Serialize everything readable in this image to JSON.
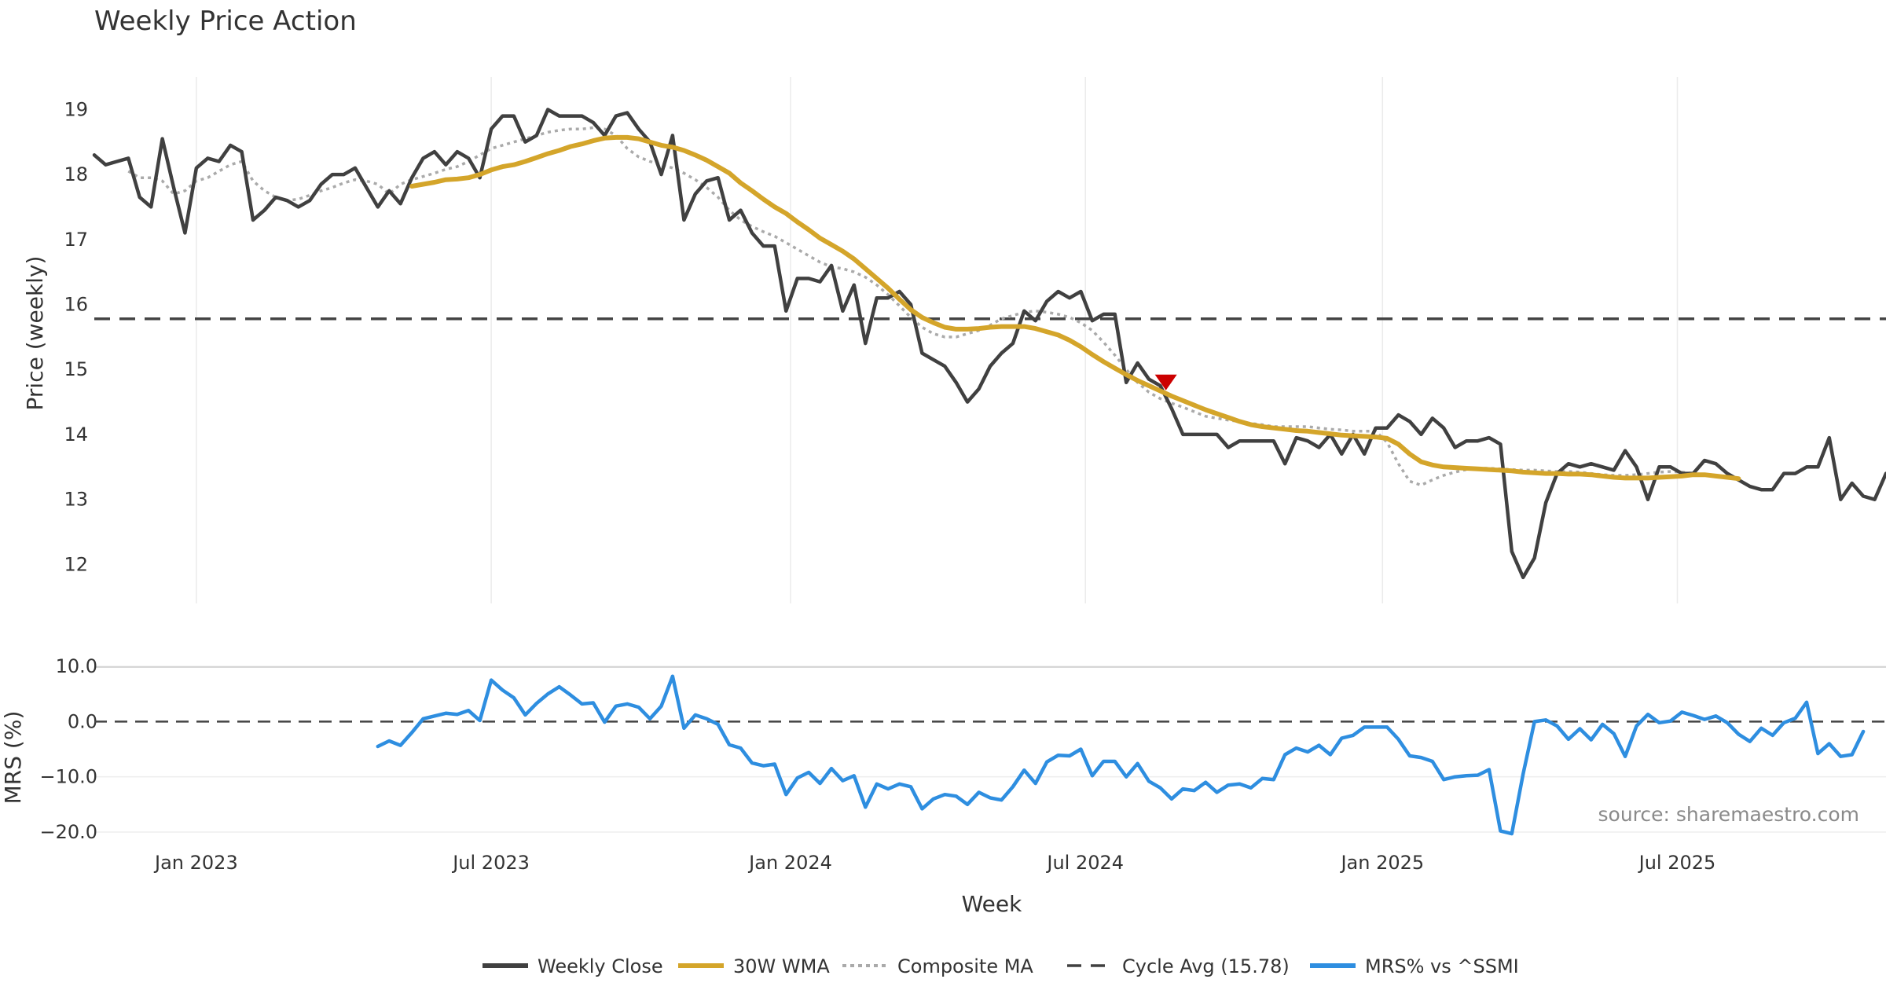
{
  "chart_data": {
    "type": "line",
    "title": "Weekly Price Action",
    "xlabel": "Week",
    "x_ticks": [
      {
        "label": "Jan 2023",
        "week": 12
      },
      {
        "label": "Jul 2023",
        "week": 38
      },
      {
        "label": "Jan 2024",
        "week": 64.4
      },
      {
        "label": "Jul 2024",
        "week": 90.4
      },
      {
        "label": "Jan 2025",
        "week": 116.6
      },
      {
        "label": "Jul 2025",
        "week": 142.6
      }
    ],
    "x_range": [
      3,
      161
    ],
    "source": "source: sharemaestro.com",
    "price_panel": {
      "ylabel": "Price (weekly)",
      "ylim": [
        11.4,
        19.5
      ],
      "yticks": [
        12,
        13,
        14,
        15,
        16,
        17,
        18,
        19
      ],
      "cycle_avg": 15.78,
      "signal": {
        "type": "sell",
        "week": 97.5,
        "value": 14.8,
        "color": "#cc0000"
      },
      "series": [
        {
          "name": "Weekly Close",
          "color": "#404040",
          "style": "solid",
          "start_week": 3,
          "values": [
            18.3,
            18.15,
            18.2,
            18.25,
            17.65,
            17.5,
            18.55,
            17.8,
            17.1,
            18.1,
            18.25,
            18.2,
            18.45,
            18.35,
            17.3,
            17.45,
            17.65,
            17.6,
            17.5,
            17.6,
            17.85,
            18.0,
            18.0,
            18.1,
            17.8,
            17.5,
            17.75,
            17.55,
            17.95,
            18.25,
            18.35,
            18.15,
            18.35,
            18.25,
            17.95,
            18.7,
            18.9,
            18.9,
            18.5,
            18.6,
            19.0,
            18.9,
            18.9,
            18.9,
            18.8,
            18.6,
            18.9,
            18.95,
            18.7,
            18.5,
            18.0,
            18.6,
            17.3,
            17.7,
            17.9,
            17.95,
            17.3,
            17.45,
            17.1,
            16.9,
            16.9,
            15.9,
            16.4,
            16.4,
            16.35,
            16.6,
            15.9,
            16.3,
            15.4,
            16.1,
            16.1,
            16.2,
            16.0,
            15.25,
            15.15,
            15.05,
            14.8,
            14.5,
            14.7,
            15.05,
            15.25,
            15.4,
            15.9,
            15.75,
            16.05,
            16.2,
            16.1,
            16.2,
            15.75,
            15.85,
            15.85,
            14.8,
            15.1,
            14.85,
            14.75,
            14.4,
            14.0,
            14.0,
            14.0,
            14.0,
            13.8,
            13.9,
            13.9,
            13.9,
            13.9,
            13.55,
            13.95,
            13.9,
            13.8,
            14.0,
            13.7,
            14.0,
            13.7,
            14.1,
            14.1,
            14.3,
            14.2,
            14.0,
            14.25,
            14.1,
            13.8,
            13.9,
            13.9,
            13.95,
            13.85,
            12.2,
            11.8,
            12.1,
            12.95,
            13.4,
            13.55,
            13.5,
            13.55,
            13.5,
            13.45,
            13.75,
            13.5,
            13.0,
            13.5,
            13.5,
            13.4,
            13.4,
            13.6,
            13.55,
            13.4,
            13.3,
            13.2,
            13.15,
            13.15,
            13.4,
            13.4,
            13.5,
            13.5,
            13.95,
            13.0,
            13.25,
            13.05,
            13.0,
            13.4
          ]
        },
        {
          "name": "30W WMA",
          "color": "#d4a52a",
          "style": "solid",
          "start_week": 31,
          "values": [
            17.82,
            17.85,
            17.88,
            17.92,
            17.93,
            17.95,
            18.0,
            18.07,
            18.12,
            18.15,
            18.2,
            18.26,
            18.32,
            18.37,
            18.43,
            18.47,
            18.52,
            18.56,
            18.57,
            18.57,
            18.55,
            18.5,
            18.45,
            18.42,
            18.37,
            18.3,
            18.22,
            18.12,
            18.02,
            17.87,
            17.75,
            17.62,
            17.5,
            17.4,
            17.27,
            17.15,
            17.02,
            16.92,
            16.82,
            16.7,
            16.55,
            16.4,
            16.25,
            16.08,
            15.92,
            15.8,
            15.72,
            15.65,
            15.62,
            15.62,
            15.63,
            15.65,
            15.66,
            15.66,
            15.66,
            15.63,
            15.58,
            15.53,
            15.45,
            15.35,
            15.23,
            15.12,
            15.02,
            14.92,
            14.83,
            14.75,
            14.67,
            14.59,
            14.52,
            14.45,
            14.38,
            14.32,
            14.26,
            14.2,
            14.15,
            14.12,
            14.1,
            14.08,
            14.06,
            14.05,
            14.03,
            14.01,
            13.99,
            13.98,
            13.97,
            13.96,
            13.94,
            13.85,
            13.7,
            13.58,
            13.53,
            13.5,
            13.49,
            13.48,
            13.47,
            13.46,
            13.45,
            13.44,
            13.42,
            13.41,
            13.4,
            13.4,
            13.39,
            13.39,
            13.38,
            13.36,
            13.34,
            13.33,
            13.33,
            13.33,
            13.34,
            13.35,
            13.36,
            13.38,
            13.38,
            13.36,
            13.34,
            13.32
          ]
        },
        {
          "name": "Composite MA",
          "color": "#aaaaaa",
          "style": "dotted",
          "start_week": 6,
          "values": [
            18.05,
            17.95,
            17.95,
            17.9,
            17.7,
            17.75,
            17.9,
            17.95,
            18.05,
            18.15,
            18.2,
            17.9,
            17.75,
            17.65,
            17.6,
            17.62,
            17.68,
            17.75,
            17.8,
            17.87,
            17.92,
            17.9,
            17.85,
            17.7,
            17.85,
            17.92,
            17.97,
            18.02,
            18.08,
            18.12,
            18.2,
            18.3,
            18.4,
            18.45,
            18.5,
            18.55,
            18.6,
            18.65,
            18.68,
            18.7,
            18.7,
            18.72,
            18.7,
            18.6,
            18.4,
            18.27,
            18.2,
            18.15,
            18.1,
            18.02,
            17.92,
            17.8,
            17.65,
            17.45,
            17.3,
            17.2,
            17.12,
            17.05,
            16.95,
            16.85,
            16.75,
            16.65,
            16.58,
            16.55,
            16.5,
            16.42,
            16.3,
            16.15,
            15.98,
            15.8,
            15.65,
            15.55,
            15.5,
            15.5,
            15.55,
            15.6,
            15.68,
            15.78,
            15.83,
            15.88,
            15.9,
            15.88,
            15.85,
            15.8,
            15.72,
            15.6,
            15.42,
            15.22,
            15.0,
            14.8,
            14.65,
            14.55,
            14.48,
            14.42,
            14.35,
            14.28,
            14.25,
            14.22,
            14.2,
            14.17,
            14.15,
            14.12,
            14.12,
            14.12,
            14.12,
            14.1,
            14.08,
            14.07,
            14.05,
            14.05,
            14.05,
            13.88,
            13.55,
            13.28,
            13.22,
            13.3,
            13.37,
            13.42,
            13.46,
            13.48,
            13.48,
            13.47,
            13.46,
            13.45,
            13.45,
            13.44,
            13.43,
            13.43,
            13.42,
            13.4,
            13.38,
            13.37,
            13.37,
            13.38,
            13.4,
            13.42,
            13.43,
            13.42,
            13.4,
            13.38,
            13.36
          ]
        }
      ]
    },
    "mrs_panel": {
      "ylabel": "MRS (%)",
      "ylim": [
        -21,
        12
      ],
      "yticks": [
        {
          "value": 10,
          "label": "10.0"
        },
        {
          "value": 0,
          "label": "0.0"
        },
        {
          "value": -10,
          "label": "−10.0"
        },
        {
          "value": -20,
          "label": "−20.0"
        }
      ],
      "series": [
        {
          "name": "MRS% vs ^SSMI",
          "color": "#2e8ee0",
          "style": "solid",
          "start_week": 28,
          "values": [
            -4.5,
            -3.5,
            -4.3,
            -2.0,
            0.5,
            1.0,
            1.5,
            1.3,
            2.0,
            0.2,
            7.5,
            5.7,
            4.3,
            1.2,
            3.3,
            5.0,
            6.3,
            4.8,
            3.2,
            3.4,
            -0.1,
            2.8,
            3.2,
            2.6,
            0.5,
            2.8,
            8.2,
            -1.2,
            1.2,
            0.5,
            -0.5,
            -4.2,
            -4.8,
            -7.5,
            -8.0,
            -7.7,
            -13.2,
            -10.2,
            -9.2,
            -11.2,
            -8.5,
            -10.7,
            -9.8,
            -15.5,
            -11.3,
            -12.2,
            -11.3,
            -11.8,
            -15.8,
            -14.0,
            -13.2,
            -13.5,
            -15.0,
            -12.8,
            -13.8,
            -14.2,
            -11.8,
            -8.8,
            -11.2,
            -7.3,
            -6.1,
            -6.2,
            -5.0,
            -9.8,
            -7.2,
            -7.2,
            -10.0,
            -7.6,
            -10.8,
            -12.0,
            -14.0,
            -12.2,
            -12.5,
            -11.0,
            -12.8,
            -11.5,
            -11.3,
            -12.0,
            -10.3,
            -10.5,
            -6.0,
            -4.8,
            -5.5,
            -4.3,
            -6.0,
            -3.0,
            -2.5,
            -1.0,
            -1.0,
            -1.0,
            -3.2,
            -6.2,
            -6.5,
            -7.2,
            -10.5,
            -10.0,
            -9.8,
            -9.7,
            -8.7,
            -19.8,
            -20.3,
            -9.5,
            0.0,
            0.3,
            -0.8,
            -3.2,
            -1.3,
            -3.3,
            -0.5,
            -2.2,
            -6.3,
            -0.8,
            1.3,
            -0.2,
            0.1,
            1.7,
            1.1,
            0.4,
            1.0,
            -0.2,
            -2.3,
            -3.6,
            -1.2,
            -2.5,
            -0.2,
            0.6,
            3.5,
            -5.8,
            -4.0,
            -6.3,
            -6.0,
            -1.8
          ]
        }
      ]
    },
    "legend": [
      {
        "label": "Weekly Close",
        "color": "#404040",
        "style": "solid"
      },
      {
        "label": "30W WMA",
        "color": "#d4a52a",
        "style": "solid"
      },
      {
        "label": "Composite MA",
        "color": "#aaaaaa",
        "style": "dotted"
      },
      {
        "label": "Cycle Avg (15.78)",
        "color": "#404040",
        "style": "dashed"
      },
      {
        "label": "MRS% vs ^SSMI",
        "color": "#2e8ee0",
        "style": "solid"
      }
    ]
  }
}
